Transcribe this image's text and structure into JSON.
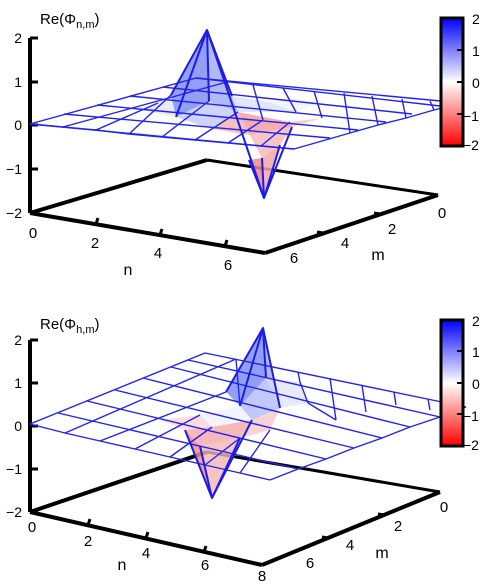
{
  "chart_data": [
    {
      "type": "surface3d",
      "zlabel": "Re(Φ",
      "zlabel_sub": "n,m",
      "zlabel_close": ")",
      "xlabel": "n",
      "ylabel": "m",
      "zlim": [
        -2,
        2
      ],
      "x_ticks": [
        "0",
        "2",
        "4",
        "6"
      ],
      "y_ticks": [
        "0",
        "2",
        "4",
        "6"
      ],
      "z_ticks": [
        "2",
        "1",
        "0",
        "−1",
        "−2"
      ],
      "colorbar": {
        "ticks": [
          "2",
          "1",
          "0",
          "−1",
          "−2"
        ],
        "range": [
          -2,
          2
        ],
        "colors": [
          "#ff0000",
          "#ffffff",
          "#0000ff"
        ]
      },
      "grid_size": 7,
      "peaks": [
        {
          "n": 3,
          "m": 4,
          "value": 2.0
        },
        {
          "n": 4,
          "m": 3,
          "value": -1.7
        }
      ]
    },
    {
      "type": "surface3d",
      "zlabel": "Re(Φ",
      "zlabel_sub": "h,m",
      "zlabel_close": ")",
      "xlabel": "n",
      "ylabel": "m",
      "zlim": [
        -2,
        2
      ],
      "x_ticks": [
        "0",
        "2",
        "4",
        "6",
        "8"
      ],
      "y_ticks": [
        "0",
        "2",
        "4",
        "6"
      ],
      "z_ticks": [
        "2",
        "1",
        "0",
        "−1",
        "−2"
      ],
      "colorbar": {
        "ticks": [
          "2",
          "1",
          "0",
          "−1",
          "−2"
        ],
        "range": [
          -2,
          2
        ],
        "colors": [
          "#ff0000",
          "#ffffff",
          "#0000ff"
        ]
      },
      "grid_size": 8,
      "peaks": [
        {
          "n": 4,
          "m": 4,
          "value": 1.9
        },
        {
          "n": 5,
          "m": 3,
          "value": -1.5
        }
      ]
    }
  ]
}
